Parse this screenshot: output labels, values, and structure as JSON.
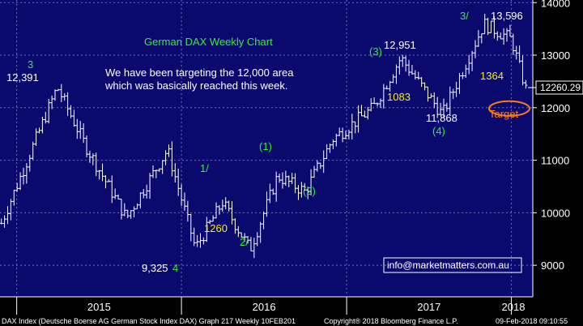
{
  "chart_data": {
    "type": "bar",
    "subtype": "ohlc",
    "title": "German DAX Weekly Chart",
    "commentary": [
      "We have been targeting the 12,000 area",
      "which was basically reached this week."
    ],
    "years": [
      "2015",
      "2016",
      "2017",
      "2018"
    ],
    "x": [
      "2015-01",
      "2015-04",
      "2015-06",
      "2015-09",
      "2015-12",
      "2016-02",
      "2016-04",
      "2016-06",
      "2016-08",
      "2016-10",
      "2016-12",
      "2017-03",
      "2017-05",
      "2017-08",
      "2017-11",
      "2018-01",
      "2018-02"
    ],
    "close": [
      9800,
      12391,
      11300,
      9900,
      11200,
      9325,
      10200,
      9300,
      10700,
      10400,
      11400,
      12000,
      12951,
      11868,
      13596,
      13300,
      12260
    ],
    "ylim": [
      8400,
      14050
    ],
    "yticks": [
      9000,
      10000,
      11000,
      12000,
      13000,
      14000
    ],
    "last_price": "12260.29",
    "target_level": 12000,
    "annotations": {
      "high_2015": "12,391",
      "low_2016": "9,325",
      "high_2017": "12,951",
      "low_2017": "11,868",
      "high_2018": "13,596",
      "wave_3_2015": "3",
      "wave_4_2016": "4",
      "wave_1": "1/",
      "wave_2": "2/",
      "wave_1p": "(1)",
      "wave_2p": "(2)",
      "wave_3p": "(3)",
      "wave_4p": "(4)",
      "wave_3_slash": "3/",
      "move_1260": "1260",
      "move_1083": "1083",
      "move_1364": "1364",
      "target": "Target",
      "email": "info@marketmatters.com.au"
    },
    "colors": {
      "background": "#0a0a6e",
      "bars": "#ffffff",
      "wave_label": "#33ee33",
      "move_label": "#ffee00",
      "target": "#ff7a1a",
      "grid": "#6f6fb0"
    }
  },
  "footer": {
    "left": "DAX Index (Deutsche Boerse AG German Stock Index DAX) Graph 217  Weekly 10FEB201",
    "copyright": "Copyright® 2018 Bloomberg Finance L.P.",
    "timestamp": "09-Feb-2018 09:10:55"
  }
}
